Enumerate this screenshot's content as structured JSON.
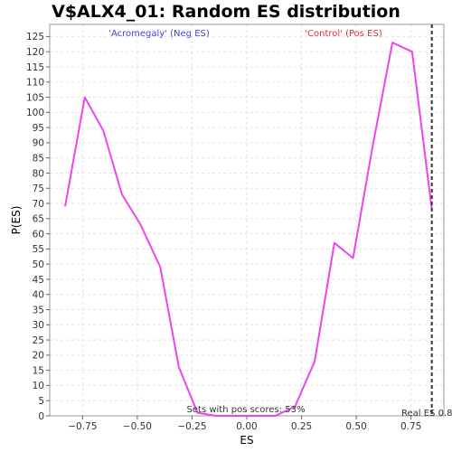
{
  "chart_data": {
    "type": "line",
    "title": "V$ALX4_01: Random ES distribution",
    "xlabel": "ES",
    "ylabel": "P(ES)",
    "xlim": [
      -0.9,
      0.9
    ],
    "ylim": [
      0,
      129
    ],
    "x_ticks": [
      -0.75,
      -0.5,
      -0.25,
      0.0,
      0.25,
      0.5,
      0.75
    ],
    "x_tick_labels": [
      "−0.75",
      "−0.50",
      "−0.25",
      "0.00",
      "0.25",
      "0.50",
      "0.75"
    ],
    "y_ticks": [
      0,
      5,
      10,
      15,
      20,
      25,
      30,
      35,
      40,
      45,
      50,
      55,
      60,
      65,
      70,
      75,
      80,
      85,
      90,
      95,
      100,
      105,
      110,
      115,
      120,
      125
    ],
    "grid": true,
    "legend_position": "top",
    "series": [
      {
        "color": "#ee44ee",
        "x": [
          -0.83,
          -0.74,
          -0.655,
          -0.57,
          -0.485,
          -0.395,
          -0.31,
          -0.225,
          -0.14,
          -0.05,
          0.04,
          0.13,
          0.22,
          0.31,
          0.4,
          0.485,
          0.575,
          0.665,
          0.755,
          0.845
        ],
        "y": [
          69,
          105,
          94,
          73,
          63,
          49,
          16,
          1,
          0,
          0,
          0,
          0,
          3,
          18,
          57,
          52,
          89,
          123,
          120,
          68
        ]
      }
    ],
    "legend_left": {
      "text": "'Acromegaly' (Neg ES)",
      "color": "#4444dd"
    },
    "legend_right": {
      "text": "'Control' (Pos ES)",
      "color": "#dd3333"
    },
    "real_es": {
      "value": 0.845,
      "label": "Real ES 0.8"
    },
    "footnote": "Sets with pos scores: 53%"
  }
}
